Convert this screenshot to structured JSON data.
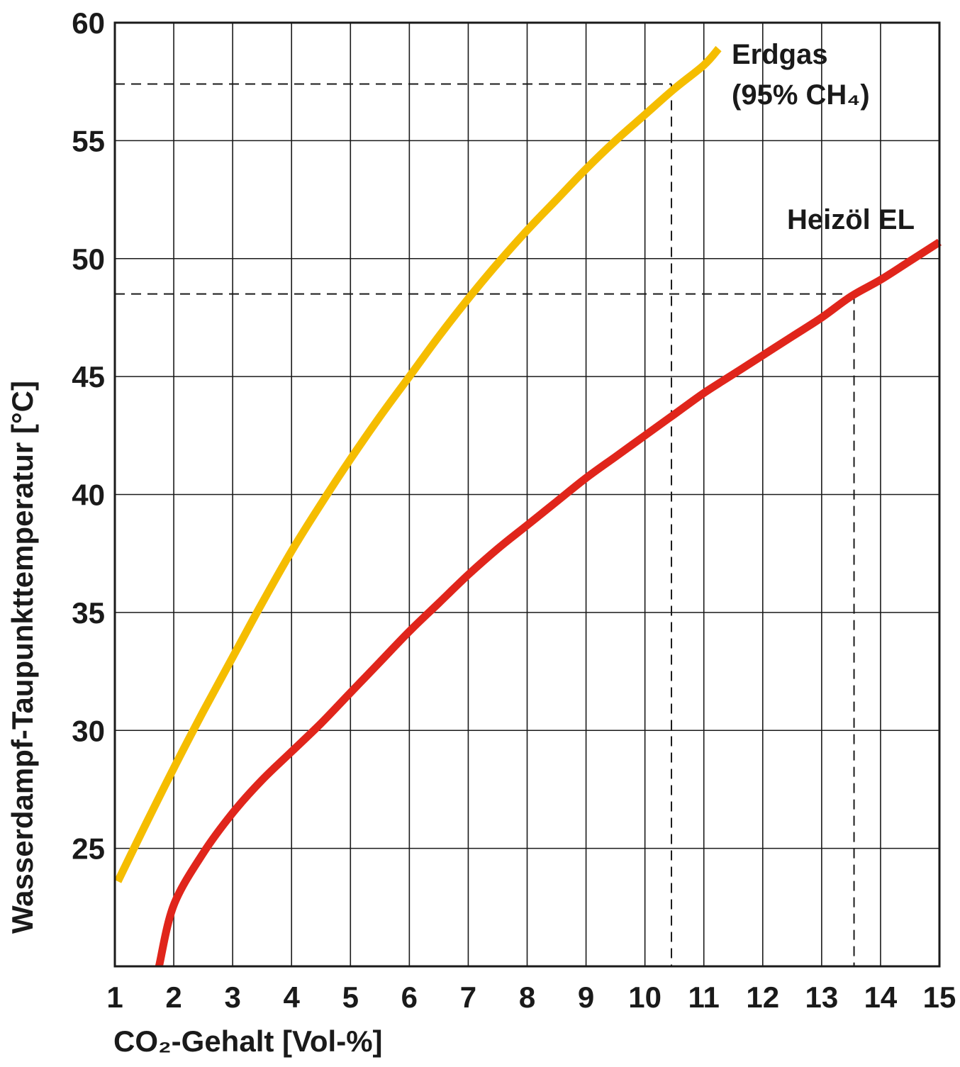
{
  "chart_data": {
    "type": "line",
    "xlabel": "CO₂-Gehalt [Vol-%]",
    "ylabel": "Wasserdampf-Taupunkttemperatur [°C]",
    "xlim": [
      1,
      15
    ],
    "ylim": [
      20,
      60
    ],
    "x_ticks": [
      "1",
      "2",
      "3",
      "4",
      "5",
      "6",
      "7",
      "8",
      "9",
      "10",
      "11",
      "12",
      "13",
      "14",
      "15"
    ],
    "y_ticks": [
      "25",
      "30",
      "35",
      "40",
      "45",
      "50",
      "55",
      "60"
    ],
    "grid": true,
    "series": [
      {
        "name": "Erdgas (95% CH₄)",
        "label_line1": "Erdgas",
        "label_line2": "(95% CH₄)",
        "color": "#f5bd00",
        "x": [
          1.05,
          1.5,
          2,
          2.5,
          3,
          3.5,
          4,
          4.5,
          5,
          5.5,
          6,
          6.5,
          7,
          7.5,
          8,
          8.5,
          9,
          9.5,
          10,
          10.5,
          11,
          11.25
        ],
        "y": [
          23.6,
          25.9,
          28.4,
          30.8,
          33.1,
          35.4,
          37.6,
          39.6,
          41.5,
          43.3,
          45.0,
          46.7,
          48.3,
          49.8,
          51.2,
          52.5,
          53.8,
          55.0,
          56.1,
          57.2,
          58.2,
          58.9
        ]
      },
      {
        "name": "Heizöl EL",
        "label_line1": "Heizöl EL",
        "color": "#e0251b",
        "x": [
          1.75,
          2,
          2.5,
          3,
          3.5,
          4,
          4.5,
          5,
          5.5,
          6,
          6.5,
          7,
          7.5,
          8,
          8.5,
          9,
          9.5,
          10,
          10.5,
          11,
          11.5,
          12,
          12.5,
          13,
          13.5,
          14,
          14.5,
          15
        ],
        "y": [
          20.0,
          22.6,
          24.8,
          26.5,
          27.9,
          29.1,
          30.3,
          31.6,
          32.9,
          34.2,
          35.4,
          36.6,
          37.7,
          38.7,
          39.7,
          40.7,
          41.6,
          42.5,
          43.4,
          44.3,
          45.1,
          45.9,
          46.7,
          47.5,
          48.4,
          49.1,
          49.9,
          50.7
        ]
      }
    ],
    "reference_lines": [
      {
        "x": 10.45,
        "y": 57.4,
        "series": "Erdgas (95% CH₄)"
      },
      {
        "x": 13.55,
        "y": 48.5,
        "series": "Heizöl EL"
      }
    ]
  }
}
